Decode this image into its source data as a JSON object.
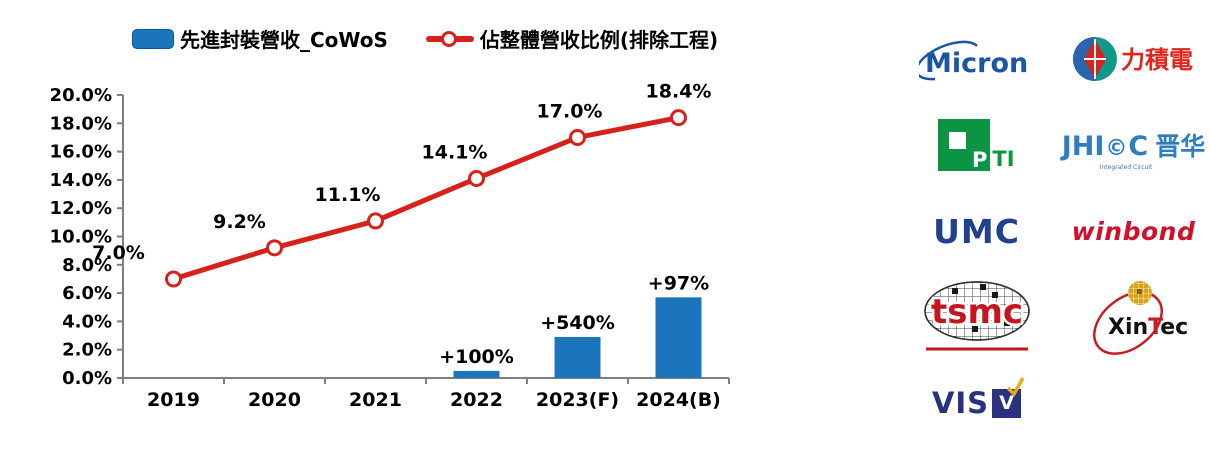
{
  "legend": {
    "bar_label": "先進封裝營收_CoWoS",
    "line_label": "佔整體營收比例(排除工程)"
  },
  "chart_data": {
    "type": "combo_bar_line",
    "title": "",
    "categories": [
      "2019",
      "2020",
      "2021",
      "2022",
      "2023(F)",
      "2024(B)"
    ],
    "series": [
      {
        "name": "先進封裝營收_CoWoS",
        "type": "bar",
        "color": "#1B75BC",
        "values": [
          null,
          null,
          null,
          0.5,
          2.9,
          5.7
        ],
        "point_labels": [
          "",
          "",
          "",
          "+100%",
          "+540%",
          "+97%"
        ]
      },
      {
        "name": "佔整體營收比例(排除工程)",
        "type": "line",
        "color": "#D7211B",
        "marker": "open-circle",
        "values": [
          7.0,
          9.2,
          11.1,
          14.1,
          17.0,
          18.4
        ],
        "point_labels": [
          "7.0%",
          "9.2%",
          "11.1%",
          "14.1%",
          "17.0%",
          "18.4%"
        ]
      }
    ],
    "y_axis": {
      "min": 0,
      "max": 20,
      "step": 2,
      "unit": "%",
      "tick_labels": [
        "0.0%",
        "2.0%",
        "4.0%",
        "6.0%",
        "8.0%",
        "10.0%",
        "12.0%",
        "14.0%",
        "16.0%",
        "18.0%",
        "20.0%"
      ]
    },
    "x_axis": {
      "tick_labels": [
        "2019",
        "2020",
        "2021",
        "2022",
        "2023(F)",
        "2024(B)"
      ]
    },
    "legend_position": "top",
    "grid": false,
    "axis_color": "#7F7F7F"
  },
  "logos": {
    "micron": {
      "text": "Micron"
    },
    "psmc": {
      "text": "力積電"
    },
    "pti": {
      "p": "P",
      "ti": "TI"
    },
    "jhicc": {
      "jhi": "JHI",
      "ic": "©",
      "c": "C",
      "sub": "Integrated Circuit",
      "cjk": "晋华"
    },
    "umc": {
      "text": "UMC"
    },
    "winbond": {
      "text": "winbond"
    },
    "tsmc": {
      "text": "tsmc"
    },
    "xintec": {
      "x": "Xin",
      "t": "T",
      "ec": "ec"
    },
    "vis": {
      "text": "VIS",
      "v": "V"
    }
  },
  "colors": {
    "bar": "#1B75BC",
    "line": "#D7211B",
    "axis": "#7F7F7F",
    "micron_blue": "#1A56A5",
    "psmc_teal": "#12988A",
    "psmc_blue": "#2B65B0",
    "psmc_red": "#D8231F",
    "pti_green": "#0B9444",
    "jhicc_blue": "#2E7FC0",
    "umc_navy": "#21418E",
    "winbond_red": "#D40F2A",
    "tsmc_red": "#C4161C",
    "xintec_red": "#C41E24",
    "xintec_gold": "#D9A21B",
    "vis_navy": "#28327E",
    "vis_gold": "#E8A91C"
  }
}
